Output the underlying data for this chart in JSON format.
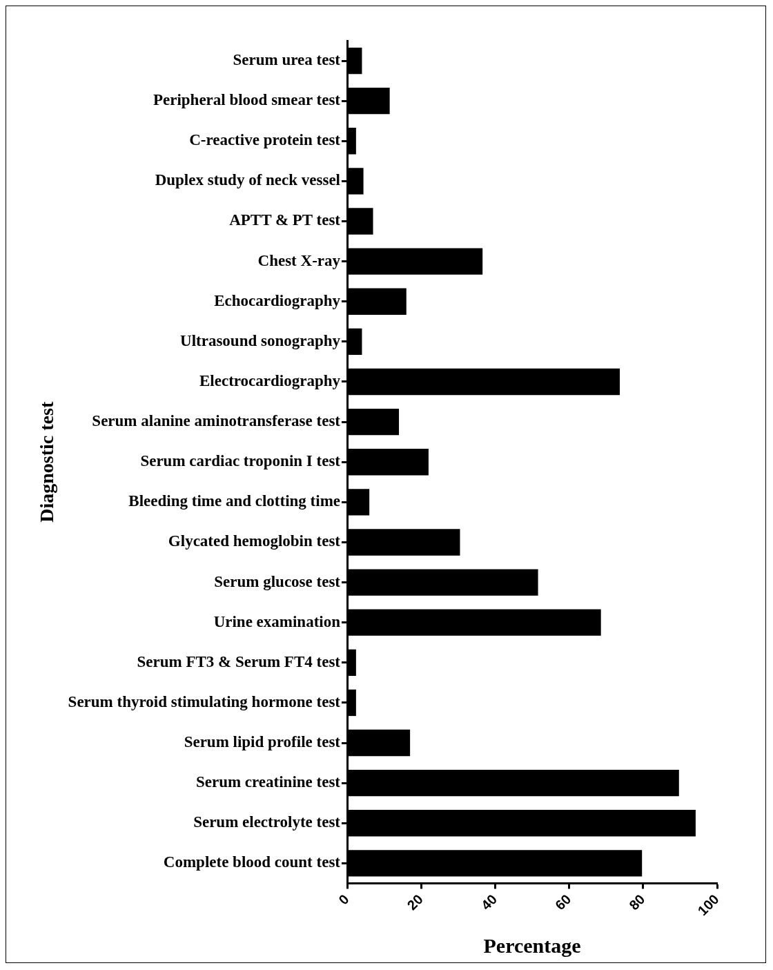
{
  "chart_data": {
    "type": "bar",
    "orientation": "horizontal",
    "xlabel": "Percentage",
    "ylabel": "Diagnostic test",
    "categories": [
      "Serum urea test",
      "Peripheral blood smear test",
      "C-reactive protein test",
      "Duplex study of neck vessel",
      "APTT & PT test",
      "Chest X-ray",
      "Echocardiography",
      "Ultrasound sonography",
      "Electrocardiography",
      "Serum alanine aminotransferase test",
      "Serum cardiac troponin I test",
      "Bleeding time and clotting time",
      "Glycated hemoglobin test",
      "Serum glucose test",
      "Urine examination",
      "Serum FT3 & Serum FT4 test",
      "Serum thyroid stimulating hormone test",
      "Serum lipid profile test",
      "Serum creatinine test",
      "Serum electrolyte test",
      "Complete blood count test"
    ],
    "values": [
      4.0,
      11.5,
      2.4,
      4.4,
      7.0,
      36.6,
      16.0,
      4.0,
      73.7,
      14.0,
      22.0,
      6.0,
      30.5,
      51.6,
      68.6,
      2.4,
      2.4,
      17.0,
      89.7,
      94.2,
      79.7
    ],
    "color": "#000000",
    "xlim": [
      0,
      100
    ],
    "xticks": [
      0,
      20,
      40,
      60,
      80,
      100
    ],
    "grid": false,
    "legend": false
  }
}
